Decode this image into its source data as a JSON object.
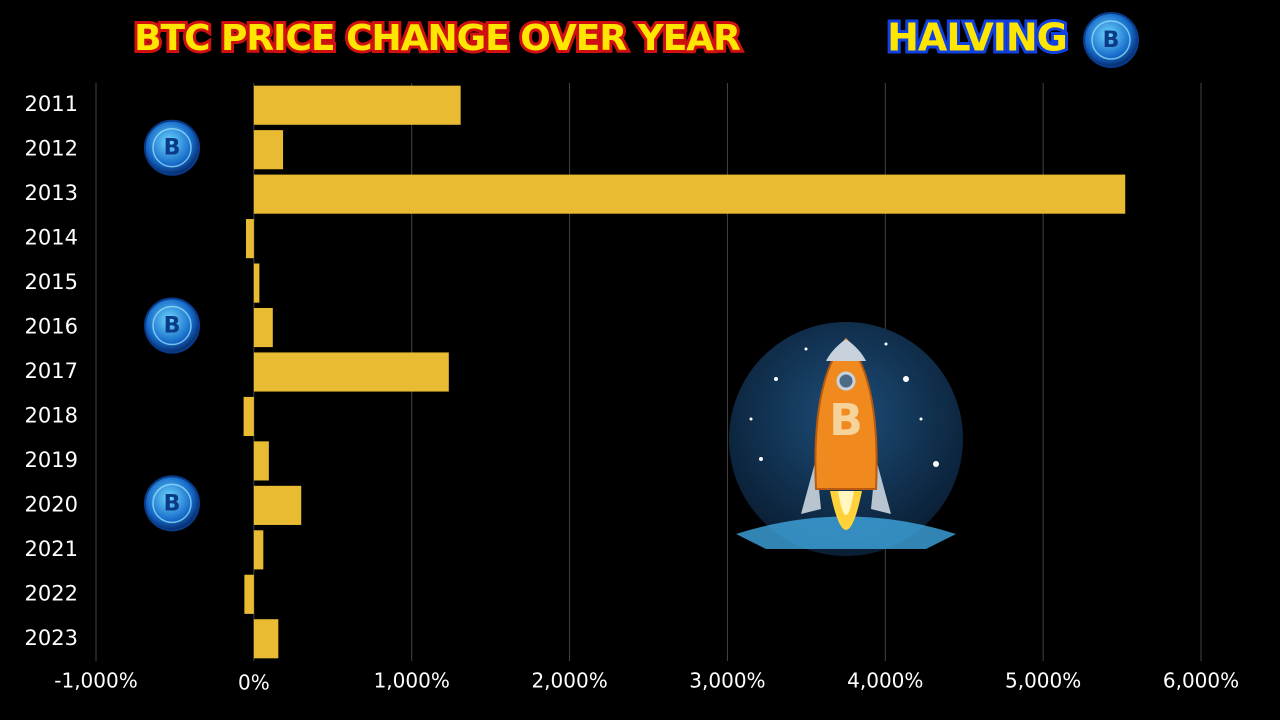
{
  "chart_data": {
    "type": "hbar",
    "title": "BTC PRICE CHANGE OVER YEAR",
    "legend_label": "HALVING",
    "categories": [
      "2011",
      "2012",
      "2013",
      "2014",
      "2015",
      "2016",
      "2017",
      "2018",
      "2019",
      "2020",
      "2021",
      "2022",
      "2023"
    ],
    "values": [
      1310,
      185,
      5520,
      -50,
      35,
      120,
      1235,
      -65,
      95,
      300,
      60,
      -60,
      155
    ],
    "halving_indices": [
      1,
      5,
      9
    ],
    "color": "#e8bb33",
    "xlim": [
      -1000,
      6000
    ],
    "xticks": [
      {
        "value": -1000,
        "label": "-1,000%"
      },
      {
        "value": 0,
        "label": "0%"
      },
      {
        "value": 1000,
        "label": "1,000%"
      },
      {
        "value": 2000,
        "label": "2,000%"
      },
      {
        "value": 3000,
        "label": "3,000%"
      },
      {
        "value": 4000,
        "label": "4,000%"
      },
      {
        "value": 5000,
        "label": "5,000%"
      },
      {
        "value": 6000,
        "label": "6,000%"
      }
    ],
    "grid": true
  }
}
